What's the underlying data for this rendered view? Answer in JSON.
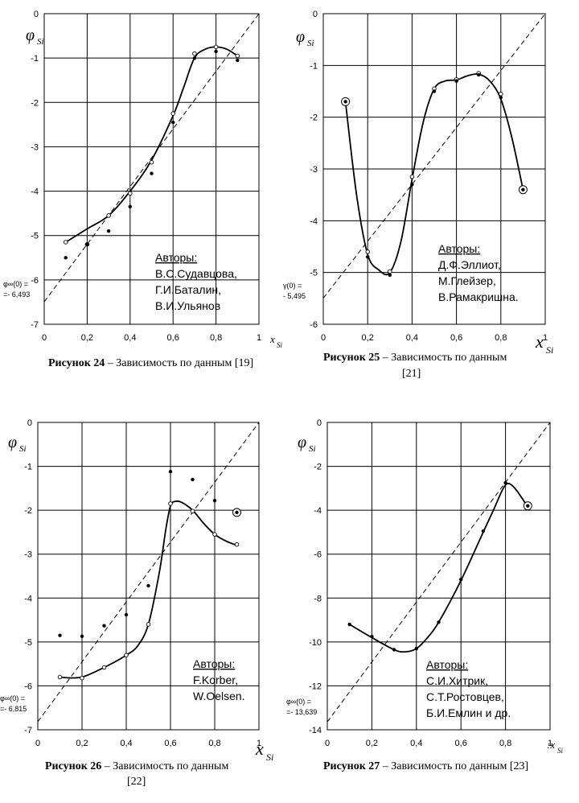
{
  "chart_data": [
    {
      "type": "line",
      "title_bold": "Рисунок 24",
      "title_rest": " – Зависимость  по данным [19]",
      "ylabel": "φ",
      "ylabel_sub": "Si",
      "xlabel": "x",
      "xlabel_sub": "Si",
      "xlim": [
        0,
        1
      ],
      "ylim": [
        -7,
        0
      ],
      "x_ticks": [
        0,
        0.2,
        0.4,
        0.6,
        0.8,
        1
      ],
      "x_tick_labels": [
        "0",
        "0,2",
        "0,4",
        "0,6",
        "0,8",
        "1"
      ],
      "y_ticks": [
        0,
        -1,
        -2,
        -3,
        -4,
        -5,
        -6,
        -7
      ],
      "y_tick_labels": [
        "0",
        "-1",
        "-2",
        "-3",
        "-4",
        "-5",
        "-6",
        "-7"
      ],
      "annotation": [
        "φ∞(0) =",
        "=- 6,493"
      ],
      "intercept": -6.493,
      "authors": [
        "Авторы:",
        "В.С.Судавцова,",
        "Г.И.Баталин,",
        "В.И.Ульянов"
      ],
      "series": [
        {
          "name": "curve",
          "x": [
            0.1,
            0.2,
            0.3,
            0.4,
            0.5,
            0.6,
            0.65,
            0.7,
            0.75,
            0.8,
            0.85,
            0.9
          ],
          "y": [
            -5.15,
            -4.85,
            -4.55,
            -4.0,
            -3.3,
            -2.3,
            -1.65,
            -1.0,
            -0.8,
            -0.75,
            -0.8,
            -0.95
          ]
        },
        {
          "name": "open points",
          "x": [
            0.1,
            0.2,
            0.3,
            0.4,
            0.5,
            0.6,
            0.7,
            0.8,
            0.9
          ],
          "y": [
            -5.15,
            -5.2,
            -4.55,
            -4.05,
            -3.35,
            -2.25,
            -0.9,
            -0.75,
            -0.95
          ]
        },
        {
          "name": "filled points",
          "x": [
            0.1,
            0.2,
            0.3,
            0.4,
            0.5,
            0.6,
            0.7,
            0.8,
            0.9
          ],
          "y": [
            -5.5,
            -5.2,
            -4.9,
            -4.35,
            -3.6,
            -2.45,
            -1.0,
            -0.85,
            -1.05
          ]
        }
      ]
    },
    {
      "type": "line",
      "title_bold": "Рисунок 25",
      "title_rest": " – Зависимость  по данным",
      "title_line2": "[21]",
      "ylabel": "φ",
      "ylabel_sub": "Si",
      "xlabel": "x",
      "xlabel_sub": "Si",
      "xlim": [
        0,
        1
      ],
      "ylim": [
        -6,
        0
      ],
      "x_ticks": [
        0,
        0.2,
        0.4,
        0.6,
        0.8,
        1
      ],
      "x_tick_labels": [
        "0",
        "0,2",
        "0,4",
        "0,6",
        "0,8",
        "1"
      ],
      "y_ticks": [
        0,
        -1,
        -2,
        -3,
        -4,
        -5,
        -6
      ],
      "y_tick_labels": [
        "0",
        "-1",
        "-2",
        "-3",
        "-4",
        "-5",
        "-6"
      ],
      "annotation": [
        "γ(0) =",
        "- 5,495"
      ],
      "intercept": -5.495,
      "authors": [
        "Авторы:",
        "Д.Ф.Эллиот,",
        "М.Глейзер,",
        "В.Рамакришна."
      ],
      "series": [
        {
          "name": "curve",
          "x": [
            0.1,
            0.15,
            0.2,
            0.25,
            0.3,
            0.35,
            0.4,
            0.45,
            0.5,
            0.55,
            0.6,
            0.65,
            0.7,
            0.75,
            0.8,
            0.85,
            0.9
          ],
          "y": [
            -1.7,
            -3.5,
            -4.65,
            -4.95,
            -5.0,
            -4.4,
            -3.2,
            -2.1,
            -1.45,
            -1.3,
            -1.28,
            -1.2,
            -1.17,
            -1.3,
            -1.65,
            -2.4,
            -3.4
          ]
        },
        {
          "name": "open points",
          "x": [
            0.2,
            0.3,
            0.4,
            0.5,
            0.6,
            0.7,
            0.8
          ],
          "y": [
            -4.6,
            -4.98,
            -3.15,
            -1.45,
            -1.27,
            -1.15,
            -1.55
          ]
        },
        {
          "name": "filled points",
          "x": [
            0.2,
            0.3,
            0.4,
            0.5,
            0.6,
            0.7,
            0.8
          ],
          "y": [
            -4.7,
            -5.05,
            -3.3,
            -1.5,
            -1.3,
            -1.18,
            -1.62
          ]
        },
        {
          "name": "circled points",
          "x": [
            0.1,
            0.9
          ],
          "y": [
            -1.7,
            -3.4
          ]
        }
      ]
    },
    {
      "type": "line",
      "title_bold": "Рисунок 26",
      "title_rest": " – Зависимость  по данным",
      "title_line2": "[22]",
      "ylabel": "φ",
      "ylabel_sub": "Si",
      "xlabel": "x",
      "xlabel_sub": "Si",
      "xlim": [
        0,
        1
      ],
      "ylim": [
        -7,
        0
      ],
      "x_ticks": [
        0,
        0.2,
        0.4,
        0.6,
        0.8,
        1
      ],
      "x_tick_labels": [
        "0",
        "0,2",
        "0,4",
        "0,6",
        "0,8",
        "1"
      ],
      "y_ticks": [
        0,
        -1,
        -2,
        -3,
        -4,
        -5,
        -6,
        -7
      ],
      "y_tick_labels": [
        "0",
        "-1",
        "-2",
        "-3",
        "-4",
        "-5",
        "-6",
        "-7"
      ],
      "annotation": [
        "φ∞(0) =",
        "=- 6,815"
      ],
      "intercept": -6.815,
      "authors": [
        "Авторы:",
        "F.Korber,",
        "W.Oelsen."
      ],
      "series": [
        {
          "name": "curve",
          "x": [
            0.1,
            0.15,
            0.2,
            0.25,
            0.3,
            0.35,
            0.4,
            0.45,
            0.5,
            0.55,
            0.58,
            0.6,
            0.62,
            0.65,
            0.7,
            0.75,
            0.8,
            0.85,
            0.9
          ],
          "y": [
            -5.8,
            -5.82,
            -5.8,
            -5.7,
            -5.58,
            -5.45,
            -5.3,
            -5.1,
            -4.6,
            -3.4,
            -2.4,
            -1.9,
            -1.8,
            -1.82,
            -2.0,
            -2.3,
            -2.55,
            -2.7,
            -2.8
          ]
        },
        {
          "name": "open points",
          "x": [
            0.1,
            0.2,
            0.3,
            0.4,
            0.5,
            0.6,
            0.7,
            0.8,
            0.9
          ],
          "y": [
            -5.8,
            -5.82,
            -5.58,
            -5.3,
            -4.6,
            -1.85,
            -2.02,
            -2.55,
            -2.78
          ]
        },
        {
          "name": "filled points",
          "x": [
            0.1,
            0.2,
            0.3,
            0.4,
            0.5,
            0.6,
            0.7,
            0.8
          ],
          "y": [
            -4.85,
            -4.87,
            -4.63,
            -4.38,
            -3.72,
            -1.12,
            -1.3,
            -1.78
          ]
        },
        {
          "name": "circled points",
          "x": [
            0.9
          ],
          "y": [
            -2.05
          ]
        }
      ]
    },
    {
      "type": "line",
      "title_bold": "Рисунок 27",
      "title_rest": " – Зависимость  по данным [23]",
      "ylabel": "φ",
      "ylabel_sub": "Si",
      "xlabel": ":x",
      "xlabel_sub": "Si",
      "xlim": [
        0,
        1
      ],
      "ylim": [
        -14,
        0
      ],
      "x_ticks": [
        0,
        0.2,
        0.4,
        0.6,
        0.8,
        1
      ],
      "x_tick_labels": [
        "0",
        "0,2",
        "0,4",
        "0,6",
        "0,8",
        "1"
      ],
      "y_ticks": [
        0,
        -2,
        -4,
        -6,
        -8,
        -10,
        -12,
        -14
      ],
      "y_tick_labels": [
        "0",
        "-2",
        "-4",
        "-6",
        "-8",
        "-10",
        "-12",
        "-14"
      ],
      "annotation": [
        "φ∞(0) =",
        "=- 13,639"
      ],
      "intercept": -13.639,
      "authors": [
        "Авторы:",
        "С.И.Хитрик,",
        "С.Т.Ростовцев,",
        "Б.И.Емлин и др."
      ],
      "series": [
        {
          "name": "curve",
          "x": [
            0.1,
            0.2,
            0.3,
            0.35,
            0.4,
            0.45,
            0.5,
            0.6,
            0.7,
            0.75,
            0.78,
            0.8,
            0.82,
            0.85,
            0.9
          ],
          "y": [
            -9.2,
            -9.8,
            -10.35,
            -10.45,
            -10.3,
            -9.8,
            -9.1,
            -7.2,
            -5.0,
            -3.9,
            -3.2,
            -2.85,
            -2.8,
            -3.1,
            -3.85
          ]
        },
        {
          "name": "filled points",
          "x": [
            0.1,
            0.2,
            0.3,
            0.4,
            0.5,
            0.6,
            0.7,
            0.8,
            0.9
          ],
          "y": [
            -9.2,
            -9.75,
            -10.35,
            -10.3,
            -9.1,
            -7.15,
            -4.95,
            -2.75,
            -3.85
          ]
        },
        {
          "name": "circled points",
          "x": [
            0.9
          ],
          "y": [
            -3.8
          ]
        }
      ]
    }
  ]
}
